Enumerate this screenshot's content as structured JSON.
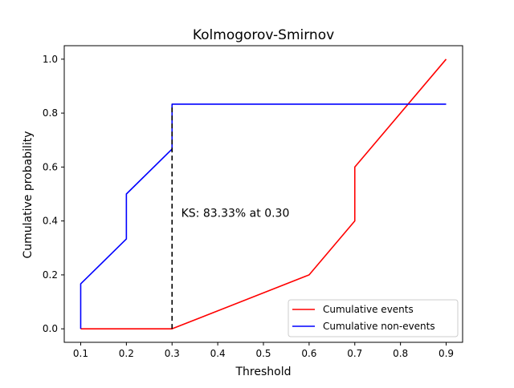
{
  "chart_data": {
    "type": "line",
    "title": "Kolmogorov-Smirnov",
    "xlabel": "Threshold",
    "ylabel": "Cumulative probability",
    "xlim": [
      0.064,
      0.936
    ],
    "ylim": [
      -0.05,
      1.05
    ],
    "xticks": [
      0.1,
      0.2,
      0.3,
      0.4,
      0.5,
      0.6,
      0.7,
      0.8,
      0.9
    ],
    "xtick_labels": [
      "0.1",
      "0.2",
      "0.3",
      "0.4",
      "0.5",
      "0.6",
      "0.7",
      "0.8",
      "0.9"
    ],
    "yticks": [
      0.0,
      0.2,
      0.4,
      0.6,
      0.8,
      1.0
    ],
    "ytick_labels": [
      "0.0",
      "0.2",
      "0.4",
      "0.6",
      "0.8",
      "1.0"
    ],
    "grid": false,
    "legend_position": "lower-right",
    "series": [
      {
        "name": "Cumulative events",
        "color": "#ff0000",
        "x": [
          0.1,
          0.1,
          0.2,
          0.2,
          0.3,
          0.3,
          0.6,
          0.6,
          0.7,
          0.7,
          0.9
        ],
        "y": [
          0.0,
          0.0,
          0.0,
          0.0,
          0.0,
          0.0,
          0.2,
          0.2,
          0.4,
          0.6,
          1.0
        ]
      },
      {
        "name": "Cumulative non-events",
        "color": "#0000ff",
        "x": [
          0.1,
          0.1,
          0.2,
          0.2,
          0.3,
          0.3,
          0.6,
          0.6,
          0.7,
          0.7,
          0.9
        ],
        "y": [
          0.0,
          0.1667,
          0.3333,
          0.5,
          0.6667,
          0.8333,
          0.8333,
          0.8333,
          0.8333,
          0.8333,
          0.8333
        ]
      }
    ],
    "ks_line": {
      "x": 0.3,
      "y_from": 0.0,
      "y_to": 0.8333,
      "color": "#000000"
    },
    "annotation": {
      "text": "KS: 83.33% at 0.30",
      "x": 0.32,
      "y": 0.43
    }
  }
}
